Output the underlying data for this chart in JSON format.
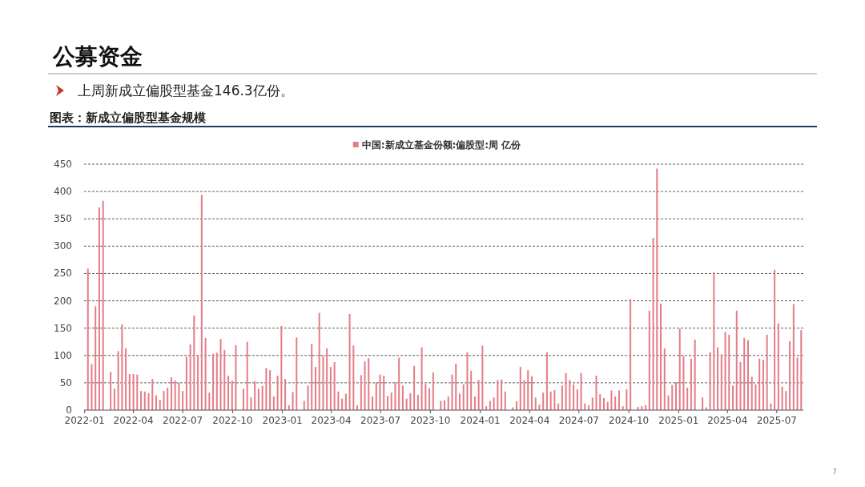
{
  "chart_data": {
    "type": "bar",
    "title": "公募资金",
    "subtitle": "上周新成立偏股型基金146.3亿份。",
    "annotations": [
      "图表：新成立偏股型基金规模",
      "7"
    ],
    "legend": "top",
    "grid": "y",
    "ylim": [
      0,
      450
    ],
    "yticks": [
      0,
      50,
      100,
      150,
      200,
      250,
      300,
      350,
      400,
      450
    ],
    "xlim": [
      "2021-12-31",
      "2025-08-19"
    ],
    "xticks": [
      "2022-01",
      "2022-04",
      "2022-07",
      "2022-10",
      "2023-01",
      "2023-04",
      "2023-07",
      "2023-10",
      "2024-01",
      "2024-04",
      "2024-07",
      "2024-10",
      "2025-01",
      "2025-04",
      "2025-07"
    ],
    "x": [
      "2022-01-07",
      "2022-01-14",
      "2022-01-21",
      "2022-01-28",
      "2022-02-04",
      "2022-02-11",
      "2022-02-18",
      "2022-02-25",
      "2022-03-04",
      "2022-03-11",
      "2022-03-18",
      "2022-03-25",
      "2022-04-01",
      "2022-04-08",
      "2022-04-15",
      "2022-04-22",
      "2022-04-29",
      "2022-05-06",
      "2022-05-13",
      "2022-05-20",
      "2022-05-27",
      "2022-06-03",
      "2022-06-10",
      "2022-06-17",
      "2022-06-24",
      "2022-07-01",
      "2022-07-08",
      "2022-07-15",
      "2022-07-22",
      "2022-07-29",
      "2022-08-05",
      "2022-08-12",
      "2022-08-19",
      "2022-08-26",
      "2022-09-02",
      "2022-09-09",
      "2022-09-16",
      "2022-09-23",
      "2022-09-30",
      "2022-10-07",
      "2022-10-14",
      "2022-10-21",
      "2022-10-28",
      "2022-11-04",
      "2022-11-11",
      "2022-11-18",
      "2022-11-25",
      "2022-12-02",
      "2022-12-09",
      "2022-12-16",
      "2022-12-23",
      "2022-12-30",
      "2023-01-06",
      "2023-01-13",
      "2023-01-20",
      "2023-01-27",
      "2023-02-03",
      "2023-02-10",
      "2023-02-17",
      "2023-02-24",
      "2023-03-03",
      "2023-03-10",
      "2023-03-17",
      "2023-03-24",
      "2023-03-31",
      "2023-04-07",
      "2023-04-14",
      "2023-04-21",
      "2023-04-28",
      "2023-05-05",
      "2023-05-12",
      "2023-05-19",
      "2023-05-26",
      "2023-06-02",
      "2023-06-09",
      "2023-06-16",
      "2023-06-23",
      "2023-06-30",
      "2023-07-07",
      "2023-07-14",
      "2023-07-21",
      "2023-07-28",
      "2023-08-04",
      "2023-08-11",
      "2023-08-18",
      "2023-08-25",
      "2023-09-01",
      "2023-09-08",
      "2023-09-15",
      "2023-09-22",
      "2023-09-29",
      "2023-10-06",
      "2023-10-13",
      "2023-10-20",
      "2023-10-27",
      "2023-11-03",
      "2023-11-10",
      "2023-11-17",
      "2023-11-24",
      "2023-12-01",
      "2023-12-08",
      "2023-12-15",
      "2023-12-22",
      "2023-12-29",
      "2024-01-05",
      "2024-01-12",
      "2024-01-19",
      "2024-01-26",
      "2024-02-02",
      "2024-02-09",
      "2024-02-16",
      "2024-02-23",
      "2024-03-01",
      "2024-03-08",
      "2024-03-15",
      "2024-03-22",
      "2024-03-29",
      "2024-04-05",
      "2024-04-12",
      "2024-04-19",
      "2024-04-26",
      "2024-05-03",
      "2024-05-10",
      "2024-05-17",
      "2024-05-24",
      "2024-05-31",
      "2024-06-07",
      "2024-06-14",
      "2024-06-21",
      "2024-06-28",
      "2024-07-05",
      "2024-07-12",
      "2024-07-19",
      "2024-07-26",
      "2024-08-02",
      "2024-08-09",
      "2024-08-16",
      "2024-08-23",
      "2024-08-30",
      "2024-09-06",
      "2024-09-13",
      "2024-09-20",
      "2024-09-27",
      "2024-10-04",
      "2024-10-11",
      "2024-10-18",
      "2024-10-25",
      "2024-11-01",
      "2024-11-08",
      "2024-11-15",
      "2024-11-22",
      "2024-11-29",
      "2024-12-06",
      "2024-12-13",
      "2024-12-20",
      "2024-12-27",
      "2025-01-03",
      "2025-01-10",
      "2025-01-17",
      "2025-01-24",
      "2025-01-31",
      "2025-02-07",
      "2025-02-14",
      "2025-02-21",
      "2025-02-28",
      "2025-03-07",
      "2025-03-14",
      "2025-03-21",
      "2025-03-28",
      "2025-04-04",
      "2025-04-11",
      "2025-04-18",
      "2025-04-25",
      "2025-05-02",
      "2025-05-09",
      "2025-05-16",
      "2025-05-23",
      "2025-05-30",
      "2025-06-06",
      "2025-06-13",
      "2025-06-20",
      "2025-06-27",
      "2025-07-04",
      "2025-07-11",
      "2025-07-18",
      "2025-07-25",
      "2025-08-01",
      "2025-08-08",
      "2025-08-15"
    ],
    "series": [
      {
        "name": "中国:新成立基金份额:偏股型:周 亿份",
        "color": "#e57c86",
        "values": [
          259,
          84,
          190,
          371,
          383,
          null,
          70,
          39,
          108,
          157,
          113,
          66,
          66,
          65,
          35,
          34,
          31,
          57,
          27,
          19,
          35,
          41,
          60,
          54,
          50,
          35,
          98,
          120,
          173,
          101,
          394,
          132,
          32,
          103,
          105,
          130,
          110,
          63,
          54,
          119,
          null,
          39,
          125,
          23,
          53,
          39,
          44,
          77,
          73,
          25,
          63,
          154,
          57,
          9,
          33,
          133,
          null,
          17,
          45,
          121,
          79,
          178,
          99,
          113,
          79,
          88,
          34,
          21,
          30,
          176,
          118,
          9,
          64,
          89,
          95,
          25,
          51,
          65,
          63,
          26,
          32,
          51,
          96,
          45,
          21,
          31,
          81,
          28,
          115,
          48,
          40,
          69,
          null,
          17,
          18,
          25,
          65,
          85,
          30,
          47,
          106,
          72,
          25,
          55,
          118,
          7,
          17,
          23,
          55,
          56,
          34,
          null,
          5,
          16,
          79,
          55,
          73,
          62,
          23,
          10,
          32,
          106,
          34,
          37,
          12,
          45,
          68,
          55,
          47,
          38,
          68,
          12,
          9,
          23,
          63,
          29,
          22,
          15,
          36,
          25,
          36,
          7,
          38,
          203,
          null,
          6,
          7,
          9,
          182,
          315,
          442,
          195,
          113,
          27,
          46,
          51,
          149,
          99,
          41,
          94,
          129,
          null,
          23,
          5,
          106,
          252,
          115,
          102,
          143,
          138,
          45,
          182,
          88,
          132,
          128,
          61,
          47,
          94,
          92,
          138,
          12,
          257,
          159,
          43,
          35,
          126,
          194,
          96,
          146.3
        ]
      }
    ]
  }
}
